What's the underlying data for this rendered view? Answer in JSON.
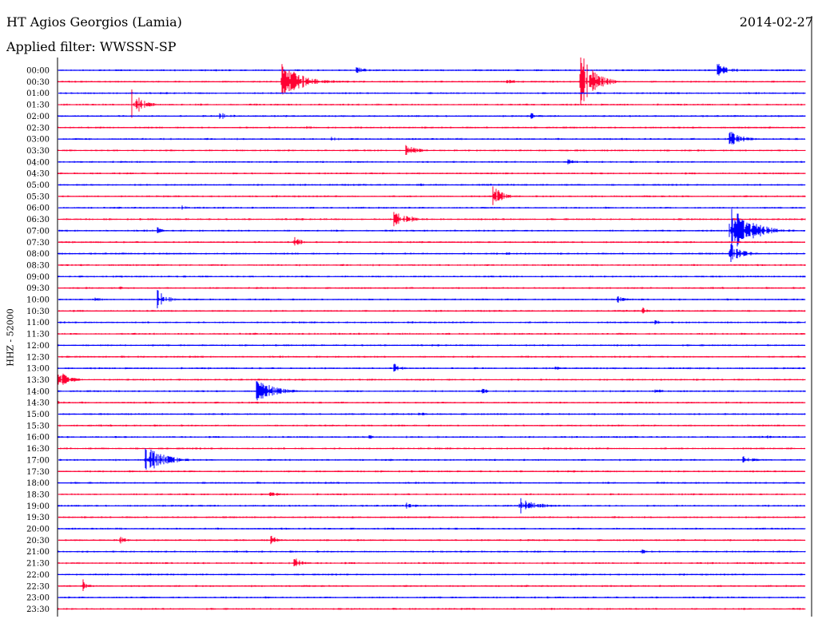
{
  "header": {
    "station": "HT Agios Georgios (Lamia)",
    "date": "2014-02-27",
    "filter": "Applied filter: WWSSN-SP"
  },
  "channel_label": "HHZ - 52000",
  "chart_data": {
    "type": "line",
    "title": "HT Agios Georgios (Lamia)",
    "ylabel": "HHZ - 52000",
    "grid": false,
    "colors": {
      "even_rows": "#0000ff",
      "odd_rows": "#ff0033"
    },
    "row_labels": [
      "00:00",
      "00:30",
      "01:00",
      "01:30",
      "02:00",
      "02:30",
      "03:00",
      "03:30",
      "04:00",
      "04:30",
      "05:00",
      "05:30",
      "06:00",
      "06:30",
      "07:00",
      "07:30",
      "08:00",
      "08:30",
      "09:00",
      "09:30",
      "10:00",
      "10:30",
      "11:00",
      "11:30",
      "12:00",
      "12:30",
      "13:00",
      "13:30",
      "14:00",
      "14:30",
      "15:00",
      "15:30",
      "16:00",
      "16:30",
      "17:00",
      "17:30",
      "18:00",
      "18:30",
      "19:00",
      "19:30",
      "20:00",
      "20:30",
      "21:00",
      "21:30",
      "22:00",
      "22:30",
      "23:00",
      "23:30"
    ],
    "minutes_per_row": 30,
    "events": [
      {
        "row": "00:00",
        "minute": 12.0,
        "amplitude": 0.6,
        "duration": 1.5
      },
      {
        "row": "00:00",
        "minute": 26.5,
        "amplitude": 1.3,
        "duration": 1.5
      },
      {
        "row": "00:30",
        "minute": 9.0,
        "amplitude": 3.2,
        "duration": 2.5
      },
      {
        "row": "00:30",
        "minute": 21.0,
        "amplitude": 5.5,
        "duration": 1.5
      },
      {
        "row": "00:30",
        "minute": 18.0,
        "amplitude": 0.5,
        "duration": 1.5
      },
      {
        "row": "01:30",
        "minute": 3.0,
        "amplitude": 2.5,
        "duration": 1.2
      },
      {
        "row": "02:00",
        "minute": 6.5,
        "amplitude": 0.7,
        "duration": 1.5
      },
      {
        "row": "02:00",
        "minute": 19.0,
        "amplitude": 0.6,
        "duration": 0.8
      },
      {
        "row": "02:30",
        "minute": 10.0,
        "amplitude": 0.4,
        "duration": 1.0
      },
      {
        "row": "03:00",
        "minute": 11.0,
        "amplitude": 0.4,
        "duration": 1.2
      },
      {
        "row": "03:00",
        "minute": 27.0,
        "amplitude": 1.4,
        "duration": 1.5
      },
      {
        "row": "03:30",
        "minute": 14.0,
        "amplitude": 1.0,
        "duration": 1.5
      },
      {
        "row": "04:00",
        "minute": 20.5,
        "amplitude": 0.6,
        "duration": 0.8
      },
      {
        "row": "05:00",
        "minute": 14.5,
        "amplitude": 0.3,
        "duration": 1.2
      },
      {
        "row": "05:30",
        "minute": 17.5,
        "amplitude": 2.2,
        "duration": 1.0
      },
      {
        "row": "06:00",
        "minute": 5.0,
        "amplitude": 0.4,
        "duration": 1.0
      },
      {
        "row": "06:30",
        "minute": 13.5,
        "amplitude": 1.4,
        "duration": 2.0
      },
      {
        "row": "07:00",
        "minute": 4.0,
        "amplitude": 0.6,
        "duration": 0.8
      },
      {
        "row": "07:00",
        "minute": 27.0,
        "amplitude": 4.5,
        "duration": 2.5
      },
      {
        "row": "07:30",
        "minute": 9.5,
        "amplitude": 1.0,
        "duration": 1.0
      },
      {
        "row": "08:00",
        "minute": 18.0,
        "amplitude": 0.3,
        "duration": 1.5
      },
      {
        "row": "08:00",
        "minute": 27.0,
        "amplitude": 1.8,
        "duration": 1.5
      },
      {
        "row": "09:30",
        "minute": 2.5,
        "amplitude": 0.4,
        "duration": 0.5
      },
      {
        "row": "10:00",
        "minute": 1.5,
        "amplitude": 0.4,
        "duration": 1.2
      },
      {
        "row": "10:00",
        "minute": 4.0,
        "amplitude": 1.8,
        "duration": 1.0
      },
      {
        "row": "10:00",
        "minute": 22.5,
        "amplitude": 0.7,
        "duration": 0.8
      },
      {
        "row": "10:30",
        "minute": 23.5,
        "amplitude": 0.6,
        "duration": 0.6
      },
      {
        "row": "11:00",
        "minute": 24.0,
        "amplitude": 0.4,
        "duration": 1.2
      },
      {
        "row": "13:00",
        "minute": 13.5,
        "amplitude": 0.9,
        "duration": 1.0
      },
      {
        "row": "13:00",
        "minute": 20.0,
        "amplitude": 0.3,
        "duration": 1.2
      },
      {
        "row": "13:30",
        "minute": 0.0,
        "amplitude": 1.8,
        "duration": 1.2
      },
      {
        "row": "14:00",
        "minute": 8.0,
        "amplitude": 2.2,
        "duration": 2.0
      },
      {
        "row": "14:00",
        "minute": 17.0,
        "amplitude": 0.6,
        "duration": 1.0
      },
      {
        "row": "14:00",
        "minute": 24.0,
        "amplitude": 0.5,
        "duration": 1.0
      },
      {
        "row": "14:30",
        "minute": 0.0,
        "amplitude": 0.4,
        "duration": 1.2
      },
      {
        "row": "15:00",
        "minute": 2.5,
        "amplitude": 0.3,
        "duration": 0.7
      },
      {
        "row": "15:00",
        "minute": 14.5,
        "amplitude": 0.4,
        "duration": 1.2
      },
      {
        "row": "16:00",
        "minute": 12.5,
        "amplitude": 0.5,
        "duration": 1.0
      },
      {
        "row": "16:00",
        "minute": 28.5,
        "amplitude": 0.3,
        "duration": 0.8
      },
      {
        "row": "17:00",
        "minute": 3.5,
        "amplitude": 2.8,
        "duration": 2.0
      },
      {
        "row": "17:00",
        "minute": 27.5,
        "amplitude": 0.7,
        "duration": 1.5
      },
      {
        "row": "18:30",
        "minute": 8.5,
        "amplitude": 0.6,
        "duration": 1.2
      },
      {
        "row": "19:00",
        "minute": 14.0,
        "amplitude": 0.6,
        "duration": 1.2
      },
      {
        "row": "19:00",
        "minute": 18.5,
        "amplitude": 1.6,
        "duration": 2.0
      },
      {
        "row": "20:30",
        "minute": 2.5,
        "amplitude": 1.0,
        "duration": 0.6
      },
      {
        "row": "20:30",
        "minute": 8.5,
        "amplitude": 1.4,
        "duration": 0.6
      },
      {
        "row": "21:00",
        "minute": 15.0,
        "amplitude": 0.3,
        "duration": 0.8
      },
      {
        "row": "21:00",
        "minute": 23.5,
        "amplitude": 0.4,
        "duration": 1.5
      },
      {
        "row": "21:30",
        "minute": 9.5,
        "amplitude": 1.2,
        "duration": 0.8
      },
      {
        "row": "22:00",
        "minute": 2.0,
        "amplitude": 0.3,
        "duration": 0.6
      },
      {
        "row": "22:30",
        "minute": 1.0,
        "amplitude": 1.3,
        "duration": 0.6
      },
      {
        "row": "23:00",
        "minute": 19.0,
        "amplitude": 0.3,
        "duration": 1.0
      }
    ]
  }
}
